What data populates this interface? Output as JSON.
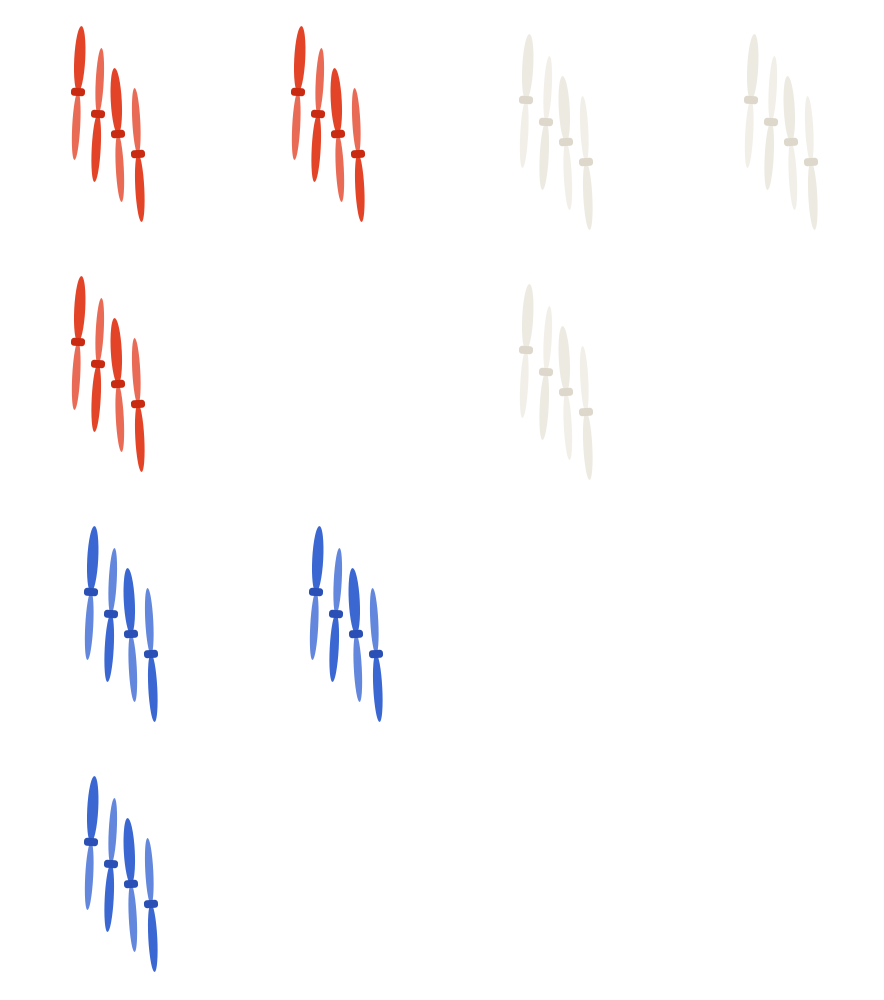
{
  "propeller_sets": [
    {
      "color_name": "red",
      "color": "#e23a1c",
      "hub": "#c92a12"
    },
    {
      "color_name": "red",
      "color": "#e23a1c",
      "hub": "#c92a12"
    },
    {
      "color_name": "white",
      "color": "#ece9e0",
      "hub": "#ddd8cb"
    },
    {
      "color_name": "white",
      "color": "#ece9e0",
      "hub": "#ddd8cb"
    },
    {
      "color_name": "red",
      "color": "#e23a1c",
      "hub": "#c92a12"
    },
    {
      "color_name": "white",
      "color": "#ece9e0",
      "hub": "#ddd8cb"
    },
    {
      "color_name": "blue",
      "color": "#2f5fd0",
      "hub": "#2a4fb5"
    },
    {
      "color_name": "blue",
      "color": "#2f5fd0",
      "hub": "#2a4fb5"
    },
    {
      "color_name": "blue",
      "color": "#2f5fd0",
      "hub": "#2a4fb5"
    }
  ]
}
